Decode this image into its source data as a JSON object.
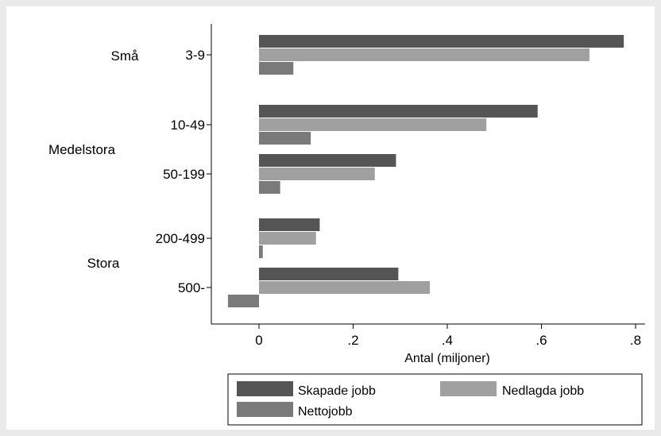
{
  "chart_data": {
    "type": "bar",
    "orientation": "horizontal",
    "xlabel": "Antal (miljoner)",
    "xlim": [
      -0.1,
      0.82
    ],
    "xticks": [
      0,
      0.2,
      0.4,
      0.6,
      0.8
    ],
    "xtick_labels": [
      "0",
      ".2",
      ".4",
      ".6",
      ".8"
    ],
    "groups": [
      {
        "label": "Små",
        "categories": [
          "3-9"
        ]
      },
      {
        "label": "Medelstora",
        "categories": [
          "10-49",
          "50-199"
        ]
      },
      {
        "label": "Stora",
        "categories": [
          "200-499",
          "500-"
        ]
      }
    ],
    "categories": [
      "3-9",
      "10-49",
      "50-199",
      "200-499",
      "500-"
    ],
    "series": [
      {
        "name": "Skapade jobb",
        "color": "#555555",
        "values": [
          0.775,
          0.592,
          0.291,
          0.129,
          0.296
        ]
      },
      {
        "name": "Nedlagda jobb",
        "color": "#a0a0a0",
        "values": [
          0.702,
          0.483,
          0.246,
          0.121,
          0.363
        ]
      },
      {
        "name": "Nettojobb",
        "color": "#7a7a7a",
        "values": [
          0.073,
          0.11,
          0.045,
          0.008,
          -0.066
        ]
      }
    ],
    "grid": false,
    "legend_position": "bottom",
    "colors": {
      "background": "#eaeaea",
      "plot_background": "#ffffff"
    }
  }
}
